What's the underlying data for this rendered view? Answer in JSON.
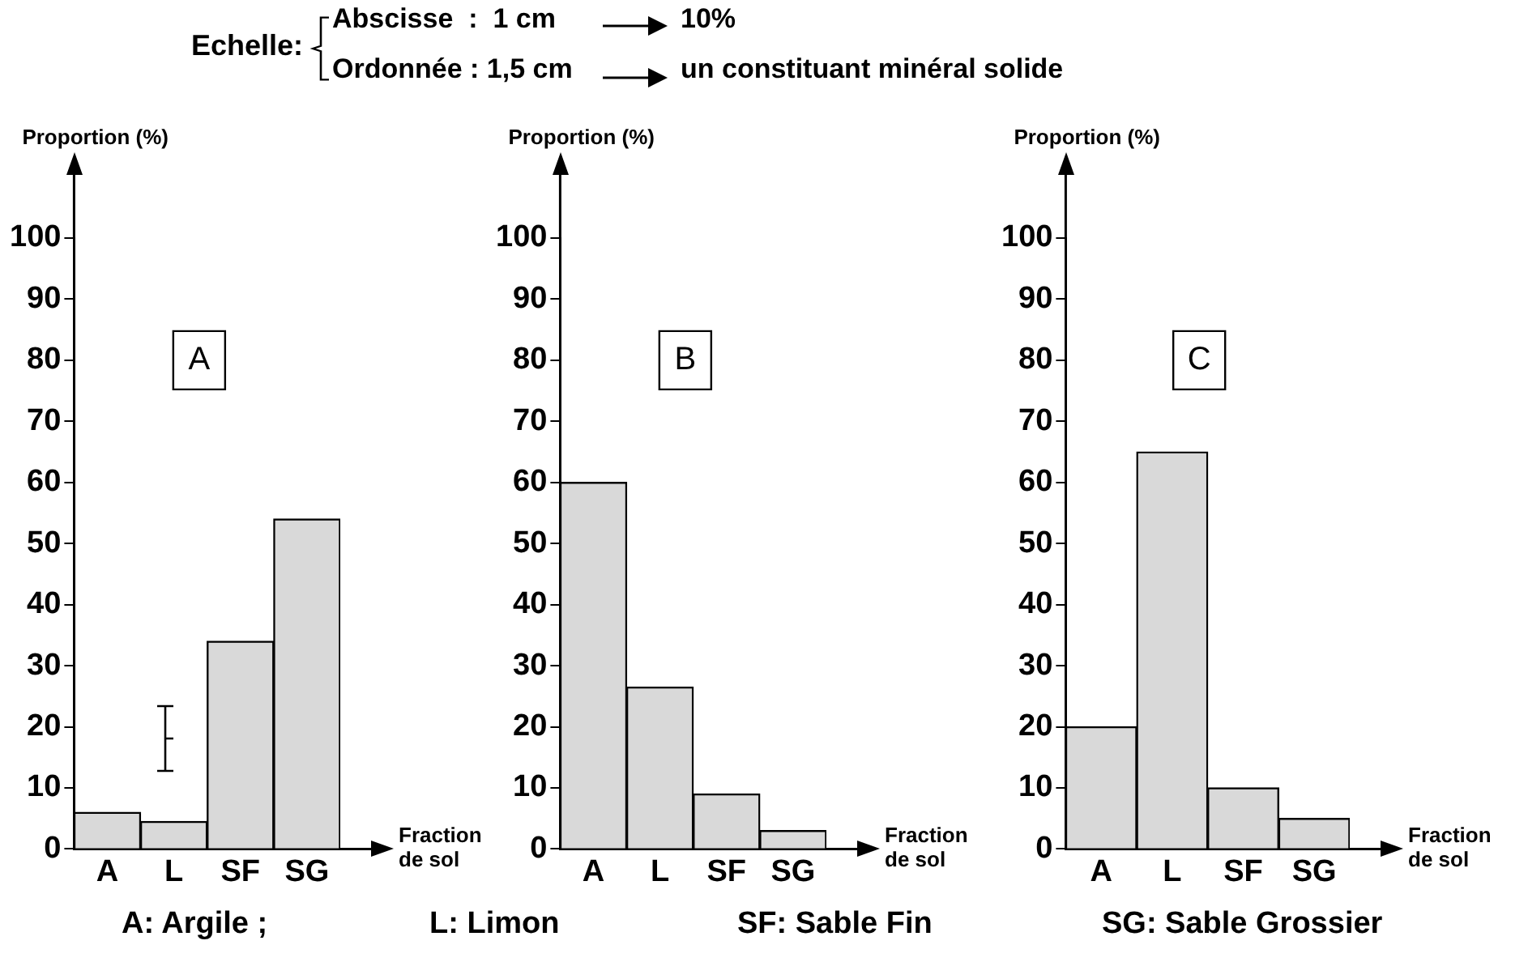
{
  "chart_data": [
    {
      "type": "bar",
      "title": "A",
      "xlabel": "Fraction de sol",
      "ylabel": "Proportion (%)",
      "categories": [
        "A",
        "L",
        "SF",
        "SG"
      ],
      "values": [
        6,
        4.5,
        34,
        54
      ],
      "color": "#d9d9d9",
      "ylim": [
        0,
        100
      ],
      "yticks": [
        0,
        10,
        20,
        30,
        40,
        50,
        60,
        70,
        80,
        90,
        100
      ],
      "annotations": [
        "Echelle:",
        "Abscisse  :  1 cm",
        "10%",
        "Ordonnée : 1,5 cm",
        "un constituant minéral solide",
        "A: Argile ;",
        "L: Limon",
        "SF: Sable Fin",
        "SG: Sable Grossier"
      ]
    },
    {
      "type": "bar",
      "title": "B",
      "xlabel": "Fraction de sol",
      "ylabel": "Proportion (%)",
      "categories": [
        "A",
        "L",
        "SF",
        "SG"
      ],
      "values": [
        60,
        26.5,
        9,
        3
      ],
      "color": "#d9d9d9",
      "ylim": [
        0,
        100
      ],
      "yticks": [
        0,
        10,
        20,
        30,
        40,
        50,
        60,
        70,
        80,
        90,
        100
      ]
    },
    {
      "type": "bar",
      "title": "C",
      "xlabel": "Fraction de sol",
      "ylabel": "Proportion (%)",
      "categories": [
        "A",
        "L",
        "SF",
        "SG"
      ],
      "values": [
        20,
        65,
        10,
        5
      ],
      "color": "#d9d9d9",
      "ylim": [
        0,
        100
      ],
      "yticks": [
        0,
        10,
        20,
        30,
        40,
        50,
        60,
        70,
        80,
        90,
        100
      ]
    }
  ]
}
